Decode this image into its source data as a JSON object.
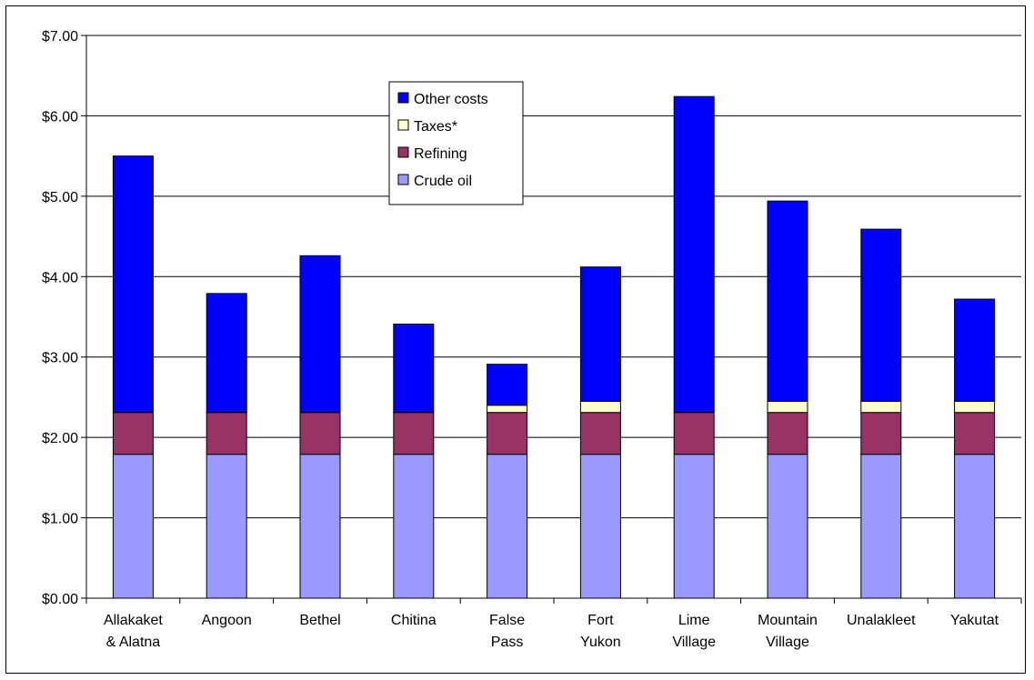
{
  "chart_data": {
    "type": "bar",
    "stacked": true,
    "categories": [
      [
        "Allakaket",
        "& Alatna"
      ],
      [
        "Angoon"
      ],
      [
        "Bethel"
      ],
      [
        "Chitina"
      ],
      [
        "False",
        "Pass"
      ],
      [
        "Fort",
        "Yukon"
      ],
      [
        "Lime",
        "Village"
      ],
      [
        "Mountain",
        "Village"
      ],
      [
        "Unalakleet"
      ],
      [
        "Yakutat"
      ]
    ],
    "series": [
      {
        "name": "Crude oil",
        "color": "#9999ff",
        "values": [
          1.79,
          1.79,
          1.79,
          1.79,
          1.79,
          1.79,
          1.79,
          1.79,
          1.79,
          1.79
        ]
      },
      {
        "name": "Refining",
        "color": "#993366",
        "values": [
          0.52,
          0.52,
          0.52,
          0.52,
          0.52,
          0.52,
          0.52,
          0.52,
          0.52,
          0.52
        ]
      },
      {
        "name": "Taxes*",
        "color": "#ffffcc",
        "values": [
          0,
          0,
          0,
          0,
          0.09,
          0.14,
          0,
          0.14,
          0.14,
          0.14
        ]
      },
      {
        "name": "Other costs",
        "color": "#0000ff",
        "values": [
          3.19,
          1.48,
          1.95,
          1.1,
          0.51,
          1.67,
          3.93,
          2.49,
          2.14,
          1.27
        ]
      }
    ],
    "ylim": [
      0,
      7
    ],
    "yticks": [
      "$0.00",
      "$1.00",
      "$2.00",
      "$3.00",
      "$4.00",
      "$5.00",
      "$6.00",
      "$7.00"
    ],
    "legend_order": [
      "Other costs",
      "Taxes*",
      "Refining",
      "Crude oil"
    ],
    "legend_position": "top-center",
    "grid": true
  }
}
